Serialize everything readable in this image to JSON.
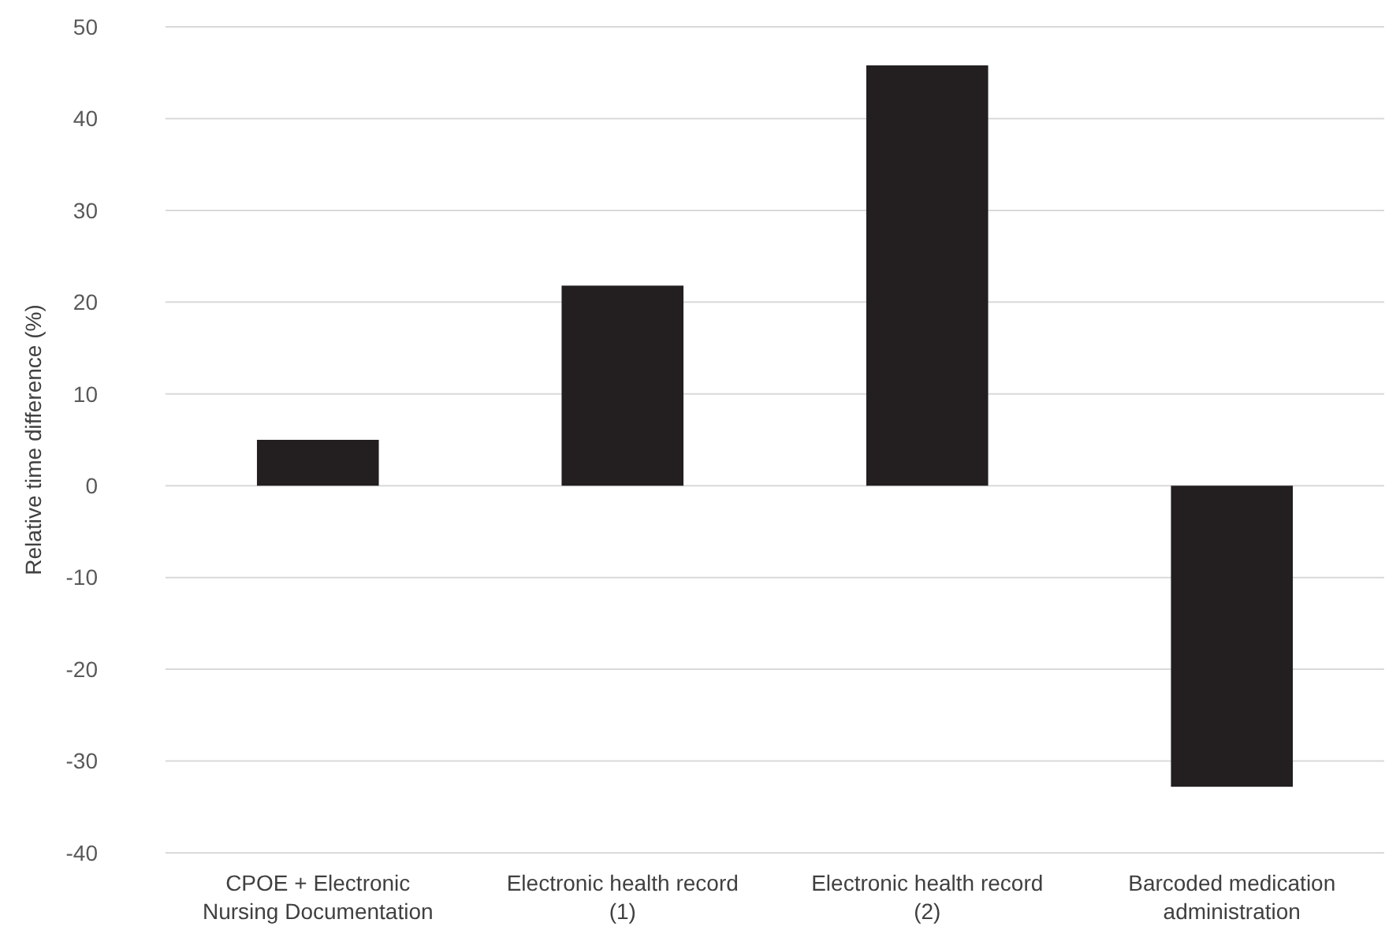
{
  "chart_data": {
    "type": "bar",
    "ylabel": "Relative time difference (%)",
    "categories": [
      "CPOE + Electronic Nursing Documentation",
      "Electronic health record (1)",
      "Electronic health record (2)",
      "Barcoded medication administration"
    ],
    "values": [
      5.0,
      21.8,
      45.8,
      -32.8
    ],
    "color": "#231f20",
    "ylim": [
      -40,
      50
    ],
    "yticks": [
      -40,
      -30,
      -20,
      -10,
      0,
      10,
      20,
      30,
      40,
      50
    ],
    "grid": "y"
  }
}
